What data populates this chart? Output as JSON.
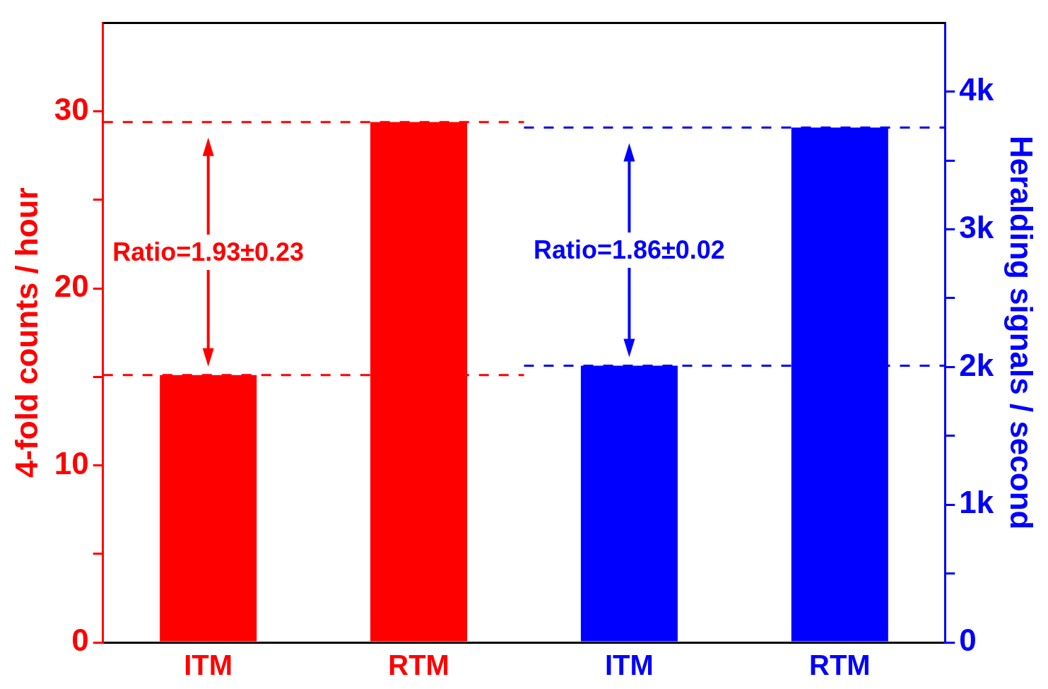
{
  "chart_data": {
    "type": "bar",
    "ylabel": "4-fold counts / hour",
    "y2label": "Heralding signals / second",
    "categories": [
      "ITM",
      "RTM",
      "ITM",
      "RTM"
    ],
    "series": [
      {
        "color": "#ff0000",
        "values": [
          15.1,
          29.4,
          null,
          null
        ]
      },
      {
        "color": "#0000ff",
        "axis": "y2",
        "values": [
          null,
          null,
          2010,
          3740
        ]
      }
    ],
    "ylim": [
      0,
      35
    ],
    "yticks": [
      0,
      {
        "value": 5,
        "label": null
      },
      10,
      {
        "value": 15,
        "label": null
      },
      20,
      {
        "value": 25,
        "label": null
      },
      30
    ],
    "y2lim": [
      0,
      4500
    ],
    "y2ticks": [
      0,
      {
        "value": 500,
        "label": null
      },
      {
        "value": 1000,
        "label": "1k"
      },
      {
        "value": 1500,
        "label": null
      },
      {
        "value": 2000,
        "label": "2k"
      },
      {
        "value": 2500,
        "label": null
      },
      {
        "value": 3000,
        "label": "3k"
      },
      {
        "value": 3500,
        "label": null
      },
      {
        "value": 4000,
        "label": "4k"
      }
    ],
    "ref_lines": [
      {
        "axis": "y",
        "value": 29.4,
        "color": "#ff0000",
        "line_style": "dashed"
      },
      {
        "axis": "y",
        "value": 15.1,
        "color": "#ff0000",
        "line_style": "dashed"
      },
      {
        "axis": "y2",
        "value": 3740,
        "color": "#0000ff",
        "line_style": "dashed"
      },
      {
        "axis": "y2",
        "value": 2010,
        "color": "#0000ff",
        "line_style": "dashed"
      }
    ],
    "annotations": [
      "Ratio=1.93±0.23",
      "Ratio=1.86±0.02"
    ],
    "grid": false,
    "legend": false
  }
}
